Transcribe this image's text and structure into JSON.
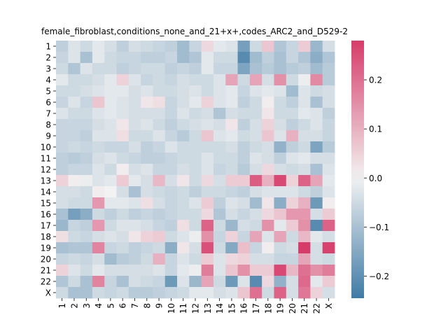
{
  "chart_data": {
    "type": "heatmap",
    "title": "female_fibroblast,conditions_none_and_21+x+,codes_ARC2_and_D529-2",
    "xlabel": "",
    "ylabel": "",
    "row_labels": [
      "1",
      "2",
      "3",
      "4",
      "5",
      "6",
      "7",
      "8",
      "9",
      "10",
      "11",
      "12",
      "13",
      "14",
      "15",
      "16",
      "17",
      "18",
      "19",
      "20",
      "21",
      "22",
      "X"
    ],
    "col_labels": [
      "1",
      "2",
      "3",
      "4",
      "5",
      "6",
      "7",
      "8",
      "9",
      "10",
      "11",
      "12",
      "13",
      "14",
      "15",
      "16",
      "17",
      "18",
      "19",
      "20",
      "21",
      "22",
      "X"
    ],
    "colorbar": {
      "ticks": [
        0.2,
        0.1,
        0.0,
        -0.1,
        -0.2
      ],
      "tick_labels": [
        "0.2",
        "0.1",
        "0.0",
        "−0.1",
        "−0.2"
      ],
      "vmin": -0.245,
      "vmax": 0.28,
      "colors": {
        "low": "#3f7aa5",
        "mid": "#f2f2f2",
        "high": "#d63c6a"
      }
    },
    "values": [
      [
        -0.07,
        -0.03,
        -0.05,
        -0.02,
        -0.04,
        -0.07,
        -0.04,
        -0.05,
        -0.06,
        -0.07,
        -0.11,
        -0.06,
        0.04,
        -0.02,
        -0.03,
        -0.17,
        -0.05,
        0.07,
        -0.09,
        -0.06,
        0.06,
        -0.12,
        -0.04
      ],
      [
        -0.06,
        -0.03,
        -0.1,
        -0.02,
        -0.05,
        -0.06,
        -0.06,
        -0.07,
        -0.07,
        -0.06,
        -0.11,
        -0.09,
        -0.02,
        -0.05,
        -0.05,
        -0.21,
        -0.11,
        -0.07,
        -0.1,
        -0.06,
        -0.09,
        -0.14,
        -0.09
      ],
      [
        -0.05,
        -0.09,
        -0.03,
        -0.05,
        -0.05,
        -0.07,
        -0.06,
        -0.05,
        -0.05,
        -0.07,
        -0.06,
        -0.07,
        -0.02,
        -0.06,
        -0.06,
        -0.16,
        -0.1,
        -0.08,
        -0.1,
        -0.08,
        -0.07,
        -0.11,
        -0.08
      ],
      [
        -0.02,
        -0.05,
        -0.05,
        -0.04,
        -0.02,
        0.05,
        -0.03,
        -0.06,
        -0.05,
        -0.06,
        -0.04,
        -0.05,
        -0.05,
        -0.03,
        0.12,
        -0.05,
        0.12,
        -0.04,
        0.15,
        -0.05,
        -0.01,
        0.16,
        -0.08
      ],
      [
        -0.05,
        -0.05,
        -0.04,
        -0.03,
        -0.02,
        -0.02,
        -0.04,
        -0.03,
        -0.05,
        -0.05,
        -0.04,
        -0.03,
        -0.05,
        -0.03,
        -0.02,
        -0.06,
        -0.03,
        -0.02,
        -0.03,
        -0.11,
        -0.03,
        -0.05,
        -0.04
      ],
      [
        -0.06,
        -0.03,
        -0.06,
        0.07,
        -0.02,
        -0.03,
        -0.04,
        0.02,
        0.03,
        -0.06,
        -0.04,
        -0.02,
        0.05,
        -0.03,
        -0.02,
        -0.07,
        -0.05,
        0.01,
        -0.05,
        -0.07,
        -0.03,
        -0.1,
        -0.04
      ],
      [
        -0.03,
        -0.05,
        -0.05,
        -0.03,
        -0.02,
        -0.03,
        -0.04,
        -0.04,
        -0.04,
        -0.06,
        -0.03,
        -0.05,
        -0.04,
        -0.09,
        -0.04,
        -0.05,
        -0.05,
        0.02,
        -0.05,
        -0.05,
        -0.02,
        -0.03,
        -0.07
      ],
      [
        -0.06,
        -0.06,
        -0.06,
        -0.04,
        -0.03,
        0.02,
        -0.04,
        -0.03,
        -0.05,
        -0.07,
        -0.05,
        -0.04,
        -0.03,
        -0.04,
        0.02,
        -0.07,
        -0.04,
        0.05,
        -0.04,
        -0.07,
        -0.05,
        -0.03,
        -0.06
      ],
      [
        -0.06,
        -0.06,
        -0.07,
        -0.03,
        -0.03,
        0.03,
        -0.05,
        -0.05,
        -0.03,
        -0.06,
        -0.08,
        -0.05,
        0.07,
        -0.03,
        -0.02,
        -0.05,
        -0.04,
        0.07,
        -0.03,
        0.1,
        -0.04,
        -0.04,
        -0.06
      ],
      [
        -0.06,
        -0.05,
        -0.06,
        -0.05,
        -0.06,
        -0.06,
        -0.04,
        -0.07,
        -0.06,
        -0.03,
        -0.05,
        -0.05,
        -0.05,
        -0.05,
        -0.04,
        -0.07,
        -0.05,
        -0.04,
        -0.13,
        -0.07,
        -0.05,
        -0.16,
        -0.08
      ],
      [
        -0.07,
        -0.08,
        -0.07,
        -0.04,
        -0.03,
        -0.05,
        -0.06,
        -0.07,
        -0.07,
        -0.06,
        -0.05,
        -0.05,
        -0.03,
        -0.05,
        -0.05,
        -0.07,
        -0.03,
        -0.04,
        -0.07,
        -0.03,
        -0.02,
        -0.04,
        -0.04
      ],
      [
        -0.07,
        -0.06,
        -0.06,
        -0.03,
        -0.05,
        0.01,
        -0.04,
        -0.03,
        -0.06,
        -0.06,
        -0.04,
        -0.05,
        -0.03,
        -0.06,
        -0.05,
        -0.08,
        -0.04,
        0.04,
        -0.04,
        -0.05,
        -0.04,
        -0.1,
        -0.03
      ],
      [
        0.05,
        0.01,
        -0.01,
        -0.03,
        -0.02,
        0.06,
        -0.02,
        -0.04,
        0.09,
        -0.04,
        0.02,
        -0.05,
        0.04,
        -0.04,
        0.06,
        0.06,
        0.23,
        0.1,
        0.26,
        0.05,
        0.22,
        0.12,
        -0.02
      ],
      [
        -0.04,
        -0.04,
        -0.05,
        0.01,
        0.0,
        -0.04,
        -0.1,
        -0.04,
        -0.05,
        -0.06,
        -0.05,
        -0.07,
        -0.05,
        -0.05,
        -0.06,
        -0.07,
        -0.04,
        -0.03,
        -0.03,
        -0.03,
        -0.05,
        -0.07,
        -0.03
      ],
      [
        -0.04,
        -0.05,
        -0.05,
        0.14,
        -0.02,
        -0.02,
        -0.03,
        0.03,
        -0.04,
        -0.06,
        -0.05,
        -0.03,
        0.06,
        -0.07,
        -0.03,
        -0.04,
        -0.11,
        0.02,
        -0.14,
        0.05,
        0.1,
        -0.18,
        0.01
      ],
      [
        -0.1,
        -0.17,
        -0.14,
        -0.05,
        -0.07,
        -0.05,
        -0.07,
        -0.06,
        -0.07,
        -0.06,
        -0.05,
        -0.05,
        0.04,
        -0.09,
        -0.04,
        -0.06,
        -0.04,
        0.04,
        0.07,
        0.14,
        0.14,
        -0.04,
        0.06
      ],
      [
        -0.12,
        -0.06,
        -0.07,
        0.14,
        -0.05,
        -0.03,
        -0.03,
        -0.04,
        -0.06,
        -0.07,
        0.03,
        -0.05,
        0.22,
        -0.05,
        -0.12,
        -0.04,
        -0.05,
        0.15,
        -0.02,
        0.06,
        0.15,
        -0.21,
        0.22
      ],
      [
        0.03,
        -0.05,
        -0.06,
        -0.04,
        -0.03,
        -0.04,
        0.02,
        0.05,
        0.06,
        -0.05,
        -0.03,
        -0.01,
        0.15,
        -0.06,
        0.05,
        -0.06,
        0.12,
        -0.03,
        0.12,
        -0.05,
        0.09,
        -0.02,
        -0.04
      ],
      [
        -0.1,
        -0.09,
        -0.09,
        0.17,
        -0.06,
        -0.05,
        -0.07,
        -0.06,
        -0.05,
        -0.14,
        0.02,
        -0.04,
        0.25,
        -0.05,
        -0.15,
        0.08,
        -0.06,
        0.01,
        -0.05,
        -0.04,
        0.28,
        -0.04,
        0.27
      ],
      [
        -0.06,
        -0.05,
        -0.06,
        -0.04,
        -0.11,
        -0.08,
        -0.07,
        -0.05,
        0.1,
        -0.06,
        -0.03,
        -0.05,
        0.06,
        -0.03,
        0.04,
        0.05,
        -0.04,
        -0.04,
        -0.06,
        -0.06,
        0.12,
        -0.04,
        -0.05
      ],
      [
        0.05,
        -0.03,
        -0.05,
        -0.02,
        -0.04,
        -0.04,
        -0.04,
        -0.04,
        -0.03,
        -0.06,
        -0.02,
        -0.01,
        0.18,
        -0.03,
        0.07,
        0.15,
        0.06,
        0.06,
        0.26,
        0.09,
        0.2,
        0.15,
        0.18
      ],
      [
        -0.09,
        -0.05,
        -0.1,
        0.17,
        -0.06,
        -0.1,
        -0.04,
        -0.05,
        -0.06,
        -0.18,
        -0.03,
        -0.12,
        0.12,
        -0.05,
        -0.18,
        -0.03,
        -0.21,
        0.04,
        -0.13,
        -0.04,
        0.21,
        -0.02,
        0.06
      ],
      [
        -0.05,
        -0.1,
        -0.1,
        -0.05,
        -0.06,
        -0.05,
        -0.08,
        -0.08,
        -0.07,
        -0.06,
        -0.05,
        -0.02,
        -0.02,
        -0.04,
        -0.03,
        0.07,
        0.2,
        -0.05,
        0.22,
        -0.04,
        0.19,
        0.05,
        -0.04
      ]
    ]
  }
}
